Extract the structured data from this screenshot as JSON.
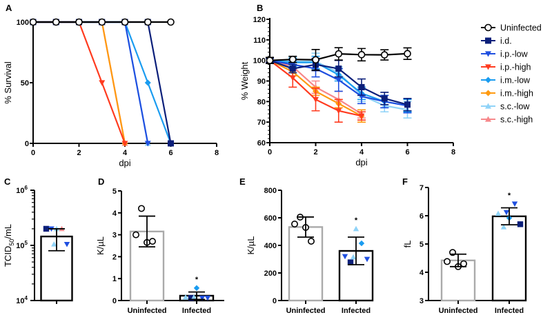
{
  "series_styles": {
    "Uninfected": {
      "color": "#000000",
      "marker": "circle-open"
    },
    "i.d.": {
      "color": "#0b1f7a",
      "marker": "square"
    },
    "i.p.-low": {
      "color": "#1f4fe0",
      "marker": "triangle-down"
    },
    "i.p.-high": {
      "color": "#ff3b1f",
      "marker": "triangle-down"
    },
    "i.m.-low": {
      "color": "#1a9cf0",
      "marker": "diamond"
    },
    "i.m.-high": {
      "color": "#ff9a10",
      "marker": "diamond"
    },
    "s.c.-low": {
      "color": "#8fd3f8",
      "marker": "triangle-up"
    },
    "s.c.-high": {
      "color": "#f7878a",
      "marker": "triangle-up"
    }
  },
  "legend": [
    "Uninfected",
    "i.d.",
    "i.p.-low",
    "i.p.-high",
    "i.m.-low",
    "i.m.-high",
    "s.c.-low",
    "s.c.-high"
  ],
  "chart_data": [
    {
      "panel": "A",
      "type": "line",
      "xlabel": "dpi",
      "ylabel": "% Survival",
      "xlim": [
        0,
        8
      ],
      "ylim": [
        0,
        100
      ],
      "xticks": [
        "0",
        "2",
        "4",
        "6",
        "8"
      ],
      "yticks": [
        "0",
        "50",
        "100"
      ],
      "series": [
        {
          "name": "Uninfected",
          "x": [
            0,
            1,
            2,
            3,
            4,
            5,
            6
          ],
          "y": [
            100,
            100,
            100,
            100,
            100,
            100,
            100
          ]
        },
        {
          "name": "i.d.",
          "x": [
            0,
            1,
            2,
            3,
            4,
            5,
            6
          ],
          "y": [
            100,
            100,
            100,
            100,
            100,
            100,
            0
          ]
        },
        {
          "name": "i.p.-low",
          "x": [
            0,
            1,
            2,
            3,
            4,
            5
          ],
          "y": [
            100,
            100,
            100,
            100,
            100,
            0
          ]
        },
        {
          "name": "i.p.-high",
          "x": [
            0,
            1,
            2,
            3,
            4
          ],
          "y": [
            100,
            100,
            100,
            50,
            0
          ]
        },
        {
          "name": "i.m.-low",
          "x": [
            0,
            1,
            2,
            3,
            4,
            5,
            6
          ],
          "y": [
            100,
            100,
            100,
            100,
            100,
            50,
            0
          ]
        },
        {
          "name": "i.m.-high",
          "x": [
            0,
            1,
            2,
            3,
            4
          ],
          "y": [
            100,
            100,
            100,
            100,
            0
          ]
        },
        {
          "name": "s.c.-low",
          "x": [
            0,
            1,
            2,
            3,
            4,
            5
          ],
          "y": [
            100,
            100,
            100,
            100,
            100,
            0
          ]
        },
        {
          "name": "s.c.-high",
          "x": [
            0,
            1,
            2,
            3,
            4
          ],
          "y": [
            100,
            100,
            100,
            100,
            0
          ]
        }
      ]
    },
    {
      "panel": "B",
      "type": "line",
      "xlabel": "dpi",
      "ylabel": "% Weight",
      "xlim": [
        0,
        8
      ],
      "ylim": [
        60,
        120
      ],
      "xticks": [
        "0",
        "2",
        "4",
        "6",
        "8"
      ],
      "yticks": [
        "60",
        "70",
        "80",
        "90",
        "100",
        "110",
        "120"
      ],
      "series": [
        {
          "name": "Uninfected",
          "x": [
            0,
            1,
            2,
            3,
            4,
            5,
            6
          ],
          "y": [
            100,
            100.5,
            100.3,
            103.2,
            102.8,
            102.7,
            103.3
          ],
          "err": [
            1.5,
            1.5,
            5,
            3,
            3,
            2.5,
            2.8
          ]
        },
        {
          "name": "i.d.",
          "x": [
            0,
            1,
            2,
            3,
            4,
            5,
            6
          ],
          "y": [
            100,
            96,
            98,
            96,
            87,
            81.5,
            78.5
          ],
          "err": [
            1,
            2,
            3,
            4,
            4,
            3,
            3
          ]
        },
        {
          "name": "i.p.-low",
          "x": [
            0,
            1,
            2,
            3,
            4,
            5,
            6
          ],
          "y": [
            100,
            98,
            96,
            90.5,
            82.5,
            80,
            78
          ],
          "err": [
            1,
            2,
            4,
            5.5,
            3.5,
            3,
            3.5
          ]
        },
        {
          "name": "i.p.-high",
          "x": [
            0,
            1,
            2,
            3,
            4
          ],
          "y": [
            100,
            91.5,
            81,
            75.5,
            73
          ],
          "err": [
            1,
            4.5,
            5.5,
            5.5,
            2
          ]
        },
        {
          "name": "i.m.-low",
          "x": [
            0,
            1,
            2,
            3,
            4,
            5,
            6
          ],
          "y": [
            100,
            99,
            99,
            93,
            84,
            80,
            78
          ],
          "err": [
            1,
            2,
            3,
            3,
            3,
            3,
            3
          ]
        },
        {
          "name": "i.m.-high",
          "x": [
            0,
            1,
            2,
            3,
            4
          ],
          "y": [
            100,
            94.5,
            85,
            79,
            73
          ],
          "err": [
            1,
            2,
            2,
            2,
            3
          ]
        },
        {
          "name": "s.c.-low",
          "x": [
            0,
            1,
            2,
            3,
            4,
            5,
            6
          ],
          "y": [
            100,
            99.5,
            99.5,
            94,
            83,
            78,
            76
          ],
          "err": [
            1,
            2,
            4,
            3,
            3,
            3,
            4
          ]
        },
        {
          "name": "s.c.-high",
          "x": [
            0,
            1,
            2,
            3,
            4
          ],
          "y": [
            100,
            97,
            87,
            81,
            74
          ],
          "err": [
            1,
            2,
            3,
            4,
            2
          ]
        }
      ]
    },
    {
      "panel": "C",
      "type": "bar",
      "ylabel_main": "TCID",
      "ylabel_sub": "50",
      "ylabel_tail": "/mL",
      "yscale": "log",
      "ylim": [
        10000,
        1000000
      ],
      "yticks": [
        {
          "base": "10",
          "exp": "4",
          "v": 10000
        },
        {
          "base": "10",
          "exp": "5",
          "v": 100000
        },
        {
          "base": "10",
          "exp": "6",
          "v": 1000000
        }
      ],
      "bars": [
        {
          "category": "",
          "value": 145000,
          "err_low": 80000,
          "err_high": 200000,
          "color": "#000000",
          "points": [
            [
              "i.d.",
              200000
            ],
            [
              "i.p.-low",
              200000
            ],
            [
              "s.c.-low",
              200000
            ],
            [
              "s.c.-high",
              200000
            ],
            [
              "i.p.-low",
              105000
            ],
            [
              "s.c.-low",
              105000
            ],
            [
              "i.p.-low",
              63000
            ],
            [
              "i.m.-low",
              63000
            ]
          ]
        }
      ]
    },
    {
      "panel": "D",
      "type": "bar",
      "ylabel": "K/µL",
      "ylim": [
        0,
        5
      ],
      "yticks": [
        "0",
        "1",
        "2",
        "3",
        "4",
        "5"
      ],
      "bars": [
        {
          "category": "Uninfected",
          "value": 3.15,
          "sd": 0.7,
          "color": "#aaaaaa",
          "points": [
            [
              "Uninfected",
              3.0
            ],
            [
              "Uninfected",
              4.2
            ],
            [
              "Uninfected",
              2.65
            ],
            [
              "Uninfected",
              2.7
            ]
          ]
        },
        {
          "category": "Infected",
          "value": 0.22,
          "sd": 0.17,
          "color": "#000000",
          "significance": "*",
          "points": [
            [
              "s.c.-low",
              0.15
            ],
            [
              "i.d.",
              0.12
            ],
            [
              "i.m.-low",
              0.57
            ],
            [
              "i.p.-low",
              0.12
            ],
            [
              "i.p.-low",
              0.12
            ],
            [
              "s.c.-low",
              0.15
            ]
          ]
        }
      ]
    },
    {
      "panel": "E",
      "type": "bar",
      "ylabel": "K/µL",
      "ylim": [
        0,
        800
      ],
      "yticks": [
        "0",
        "200",
        "400",
        "600",
        "800"
      ],
      "bars": [
        {
          "category": "Uninfected",
          "value": 533,
          "sd": 73,
          "color": "#aaaaaa",
          "points": [
            [
              "Uninfected",
              555
            ],
            [
              "Uninfected",
              605
            ],
            [
              "Uninfected",
              530
            ],
            [
              "Uninfected",
              430
            ]
          ]
        },
        {
          "category": "Infected",
          "value": 360,
          "sd": 100,
          "color": "#000000",
          "significance": "*",
          "points": [
            [
              "i.p.-low",
              320
            ],
            [
              "i.d.",
              277
            ],
            [
              "s.c.-low",
              520
            ],
            [
              "i.m.-low",
              415
            ],
            [
              "i.p.-low",
              300
            ],
            [
              "s.c.-low",
              315
            ]
          ]
        }
      ]
    },
    {
      "panel": "F",
      "type": "bar",
      "ylabel": "fL",
      "ylim": [
        3,
        7
      ],
      "yticks": [
        "3",
        "4",
        "5",
        "6",
        "7"
      ],
      "bars": [
        {
          "category": "Uninfected",
          "value": 4.42,
          "sd": 0.22,
          "color": "#aaaaaa",
          "points": [
            [
              "Uninfected",
              4.38
            ],
            [
              "Uninfected",
              4.7
            ],
            [
              "Uninfected",
              4.2
            ],
            [
              "Uninfected",
              4.3
            ]
          ]
        },
        {
          "category": "Infected",
          "value": 5.98,
          "sd": 0.3,
          "color": "#000000",
          "significance": "*",
          "points": [
            [
              "s.c.-low",
              6.08
            ],
            [
              "s.c.-low",
              5.6
            ],
            [
              "i.m.-low",
              5.92
            ],
            [
              "i.p.-low",
              6.42
            ],
            [
              "i.d.",
              5.7
            ],
            [
              "i.p.-low",
              6.12
            ]
          ]
        }
      ]
    }
  ]
}
